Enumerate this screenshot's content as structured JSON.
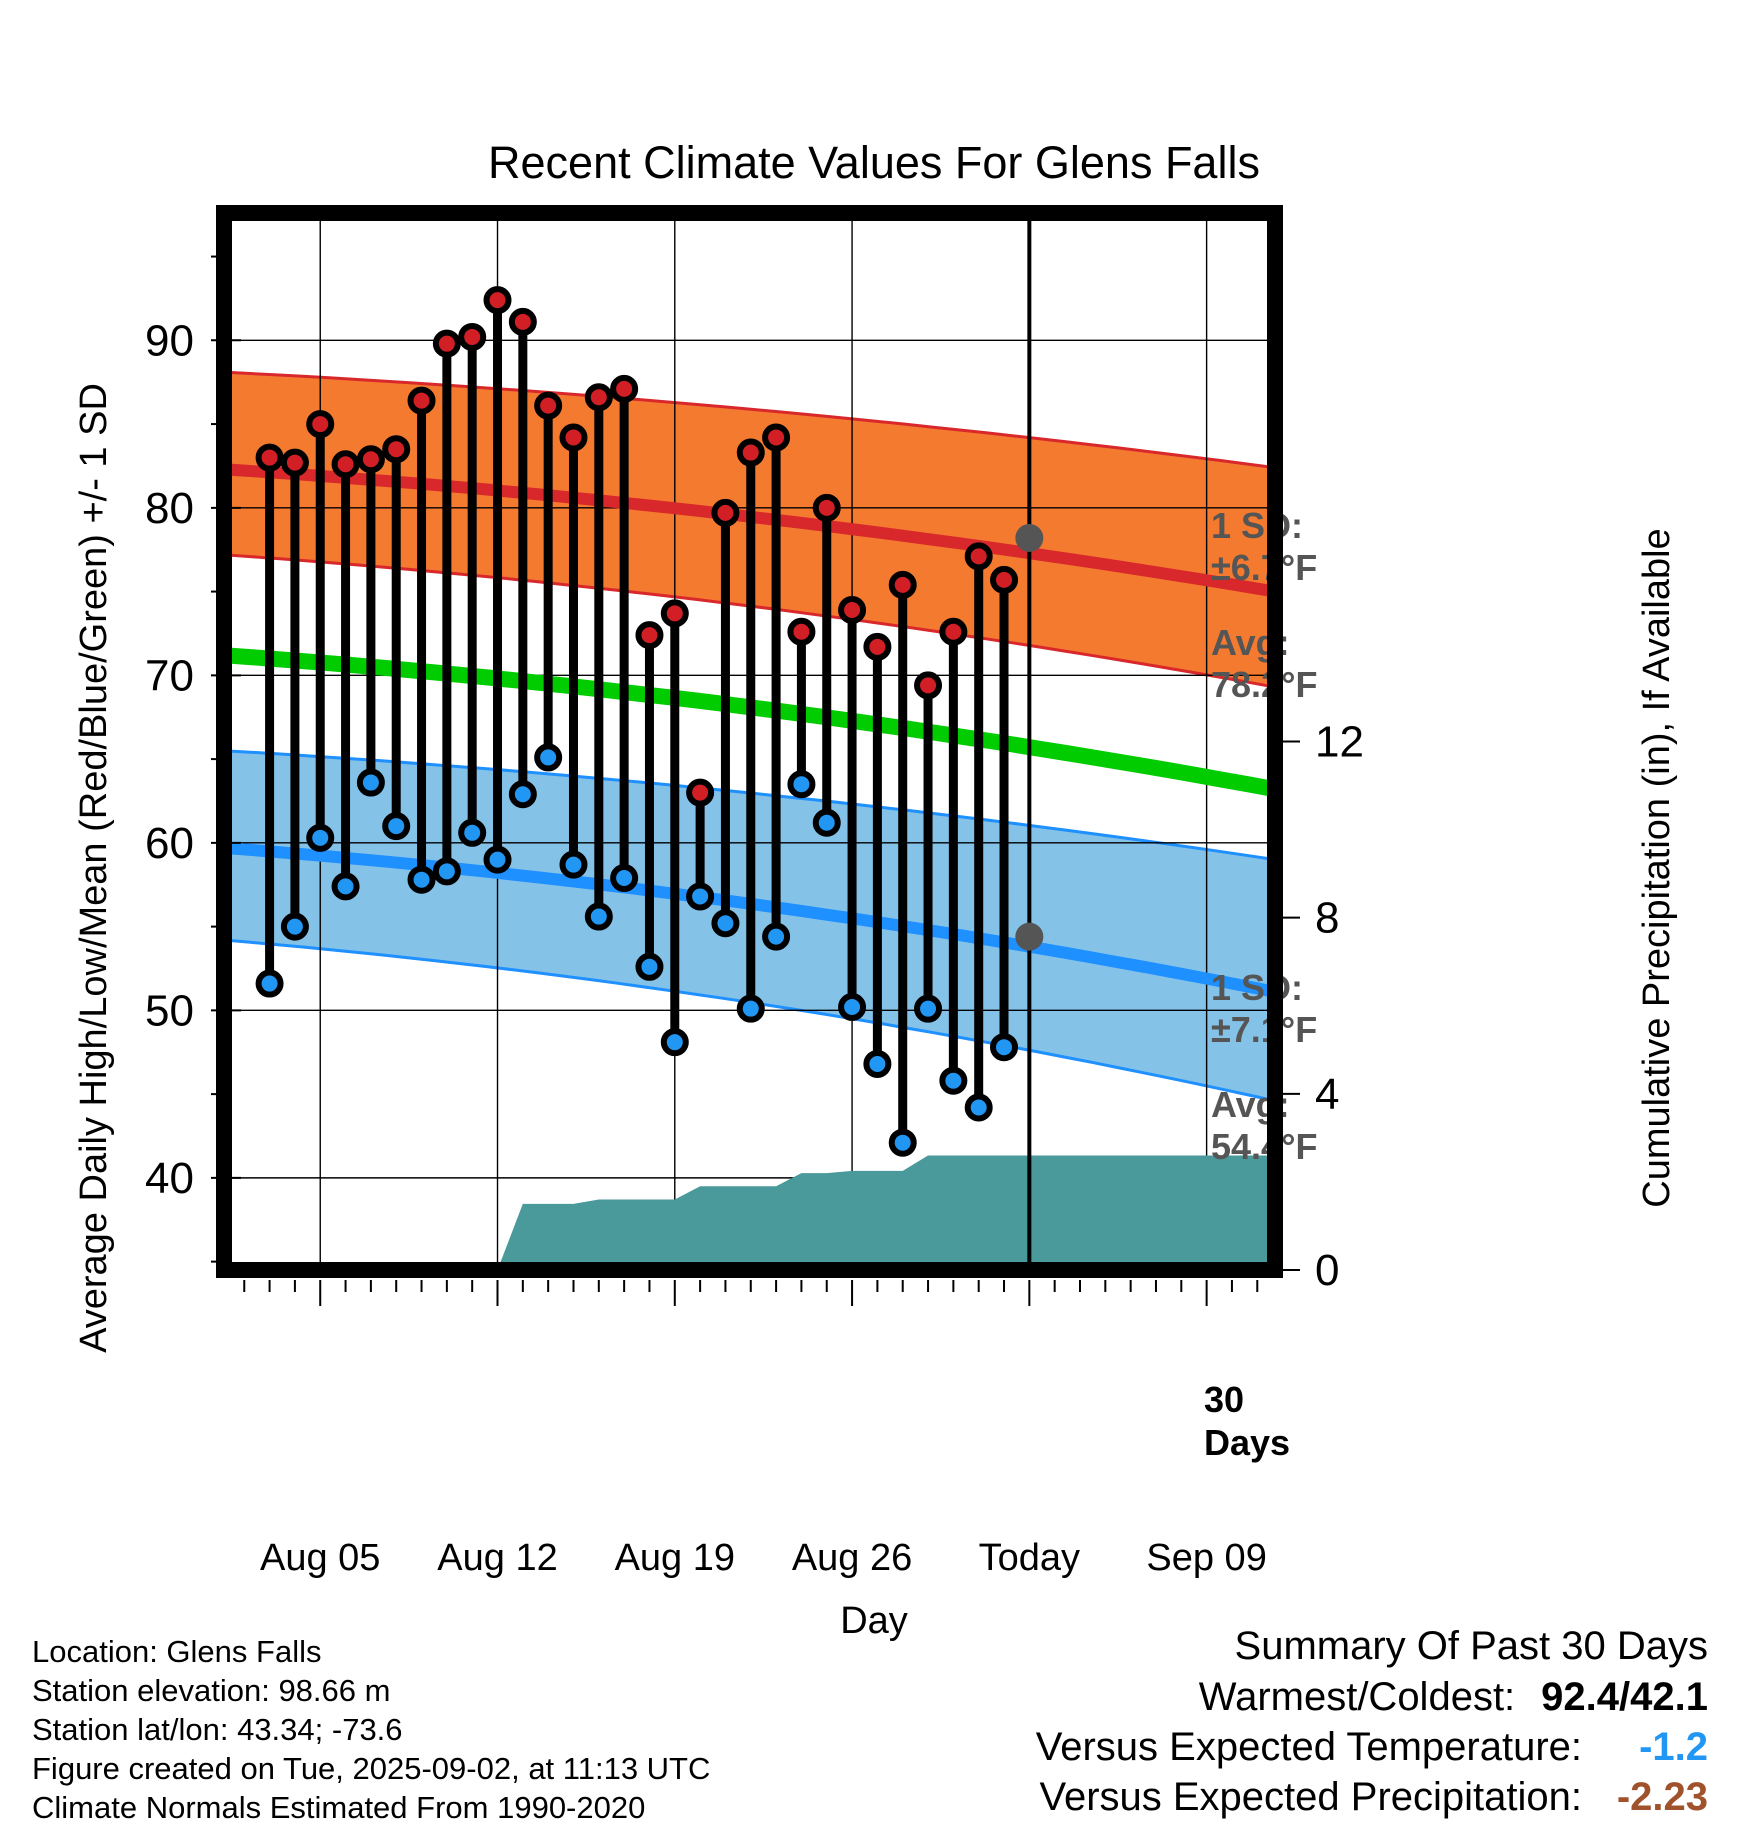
{
  "chart_data": {
    "type": "line",
    "title": "Recent Climate Values For Glens Falls",
    "xlabel": "Day",
    "ylabel": "Average Daily High/Low/Mean (Red/Blue/Green) +/- 1 SD",
    "y2label": "Cumulative Precipitation (in), If Available",
    "x_tick_labels": [
      "Aug 05",
      "Aug 12",
      "Aug 19",
      "Aug 26",
      "Today",
      "Sep 09"
    ],
    "x_tick_days": [
      5,
      12,
      19,
      26,
      33,
      40
    ],
    "x_range": [
      1.2,
      42.7
    ],
    "today_day": 33,
    "ylim": [
      34.5,
      97.6
    ],
    "y_ticks": [
      40,
      50,
      60,
      70,
      80,
      90
    ],
    "y2lim": [
      0,
      24
    ],
    "y2_ticks": [
      0,
      4,
      8,
      12
    ],
    "grid": true,
    "observed": {
      "days": [
        3,
        4,
        5,
        6,
        7,
        8,
        9,
        10,
        11,
        12,
        13,
        14,
        15,
        16,
        17,
        18,
        19,
        20,
        21,
        22,
        23,
        24,
        25,
        26,
        27,
        28,
        29,
        30,
        31,
        32
      ],
      "highs": [
        83.0,
        82.7,
        85.0,
        82.6,
        82.9,
        83.5,
        86.4,
        89.8,
        90.2,
        92.4,
        91.1,
        86.1,
        84.2,
        86.6,
        87.1,
        72.4,
        73.7,
        63.0,
        79.7,
        83.3,
        84.2,
        72.6,
        80.0,
        73.9,
        71.7,
        75.4,
        69.4,
        72.6,
        77.1,
        75.7
      ],
      "lows": [
        51.6,
        55.0,
        60.3,
        57.4,
        63.6,
        61.0,
        57.8,
        58.3,
        60.6,
        59.0,
        62.9,
        65.1,
        58.7,
        55.6,
        57.9,
        52.6,
        48.1,
        56.8,
        55.2,
        50.1,
        54.4,
        63.5,
        61.2,
        50.2,
        46.8,
        42.1,
        50.1,
        45.8,
        44.2,
        47.8
      ]
    },
    "normals": {
      "start_day": 1.2,
      "end_day": 42.7,
      "high_avg": [
        82.3,
        75.0
      ],
      "high_sd_band_top": [
        88.1,
        82.4
      ],
      "high_sd_band_bottom": [
        77.2,
        69.3
      ],
      "mean_avg": [
        71.2,
        63.2
      ],
      "low_avg": [
        59.7,
        51.1
      ],
      "low_sd_band_top": [
        65.5,
        59.0
      ],
      "low_sd_band_bottom": [
        54.2,
        44.6
      ]
    },
    "precipitation_cumulative": {
      "days": [
        1.2,
        12,
        13,
        15,
        16,
        18,
        19,
        20,
        21,
        22,
        23,
        24,
        25,
        26,
        27,
        28,
        29,
        30,
        42.7
      ],
      "values": [
        0,
        0,
        1.5,
        1.5,
        1.6,
        1.6,
        1.6,
        1.9,
        1.9,
        1.9,
        1.9,
        2.2,
        2.2,
        2.25,
        2.25,
        2.25,
        2.6,
        2.6,
        2.6
      ]
    },
    "annotations": {
      "high_sd": "1 SD:",
      "high_sd_value": "±6.7°F",
      "high_avg_label": "Avg:",
      "high_avg_value": "78.2°F",
      "high_avg_marker": 78.2,
      "low_sd": "1 SD:",
      "low_sd_value": "±7.1°F",
      "low_avg_label": "Avg:",
      "low_avg_value": "54.4°F",
      "low_avg_marker": 54.4,
      "days_label_1": "30",
      "days_label_2": "Days"
    },
    "colors": {
      "high_band": "#f47a30",
      "high_line": "#d8282b",
      "mean_line": "#00cc00",
      "low_band": "#85c2e8",
      "low_line": "#1e90ff",
      "precip": "#4a9a9c",
      "high_dot": "#d21f26",
      "low_dot": "#2196f3",
      "avg_marker": "#555555",
      "annotation_text": "#555555"
    }
  },
  "footer": {
    "location": "Location: Glens Falls",
    "elevation": "Station elevation: 98.66 m",
    "latlon": "Station lat/lon: 43.34; -73.6",
    "created": "Figure created on Tue, 2025-09-02, at 11:13 UTC",
    "normals": "Climate Normals Estimated From 1990-2020"
  },
  "summary": {
    "title": "Summary Of Past 30 Days",
    "warmest_coldest_label": "Warmest/Coldest:",
    "warmest_coldest_value": "92.4/42.1",
    "temp_label": "Versus Expected Temperature:",
    "temp_value": "-1.2",
    "temp_color": "#2196f3",
    "precip_label": "Versus Expected Precipitation:",
    "precip_value": "-2.23",
    "precip_color": "#a0522d"
  }
}
